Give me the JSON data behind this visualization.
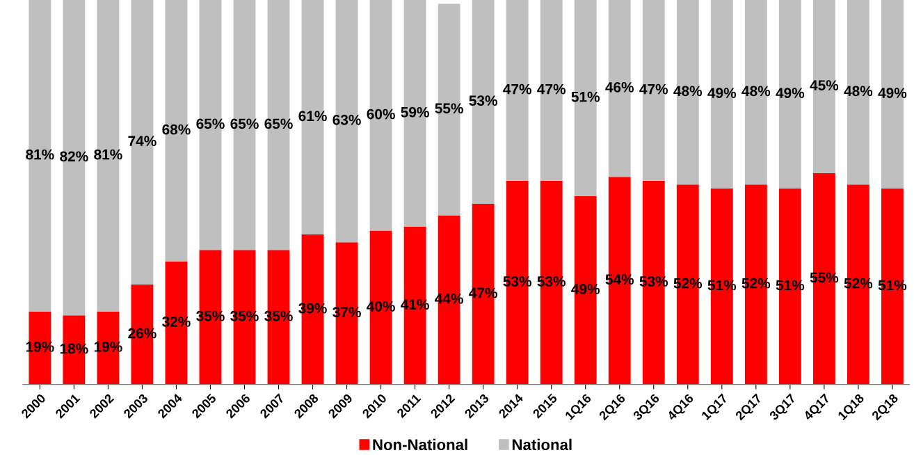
{
  "chart_data": {
    "type": "bar",
    "stacked": true,
    "legend": "bottom",
    "grid": false,
    "tick_labels": "x",
    "categories": [
      "2000",
      "2001",
      "2002",
      "2003",
      "2004",
      "2005",
      "2006",
      "2007",
      "2008",
      "2009",
      "2010",
      "2011",
      "2012",
      "2013",
      "2014",
      "2015",
      "1Q16",
      "2Q16",
      "3Q16",
      "4Q16",
      "1Q17",
      "2Q17",
      "3Q17",
      "4Q17",
      "1Q18",
      "2Q18"
    ],
    "series": [
      {
        "name": "Non-National",
        "color": "#ff0000",
        "values": [
          19,
          18,
          19,
          26,
          32,
          35,
          35,
          35,
          39,
          37,
          40,
          41,
          44,
          47,
          53,
          53,
          49,
          54,
          53,
          52,
          51,
          52,
          51,
          55,
          52,
          51
        ],
        "value_labels": [
          "19%",
          "18%",
          "19%",
          "26%",
          "32%",
          "35%",
          "35%",
          "35%",
          "39%",
          "37%",
          "40%",
          "41%",
          "44%",
          "47%",
          "53%",
          "53%",
          "49%",
          "54%",
          "53%",
          "52%",
          "51%",
          "52%",
          "51%",
          "55%",
          "52%",
          "51%"
        ]
      },
      {
        "name": "National",
        "color": "#bfbfbf",
        "values": [
          81,
          82,
          81,
          74,
          68,
          65,
          65,
          65,
          61,
          63,
          60,
          59,
          55,
          53,
          47,
          47,
          51,
          46,
          47,
          48,
          49,
          48,
          49,
          45,
          48,
          49
        ],
        "value_labels": [
          "81%",
          "82%",
          "81%",
          "74%",
          "68%",
          "65%",
          "65%",
          "65%",
          "61%",
          "63%",
          "60%",
          "59%",
          "55%",
          "53%",
          "47%",
          "47%",
          "51%",
          "46%",
          "47%",
          "48%",
          "49%",
          "48%",
          "49%",
          "45%",
          "48%",
          "49%"
        ]
      }
    ]
  }
}
